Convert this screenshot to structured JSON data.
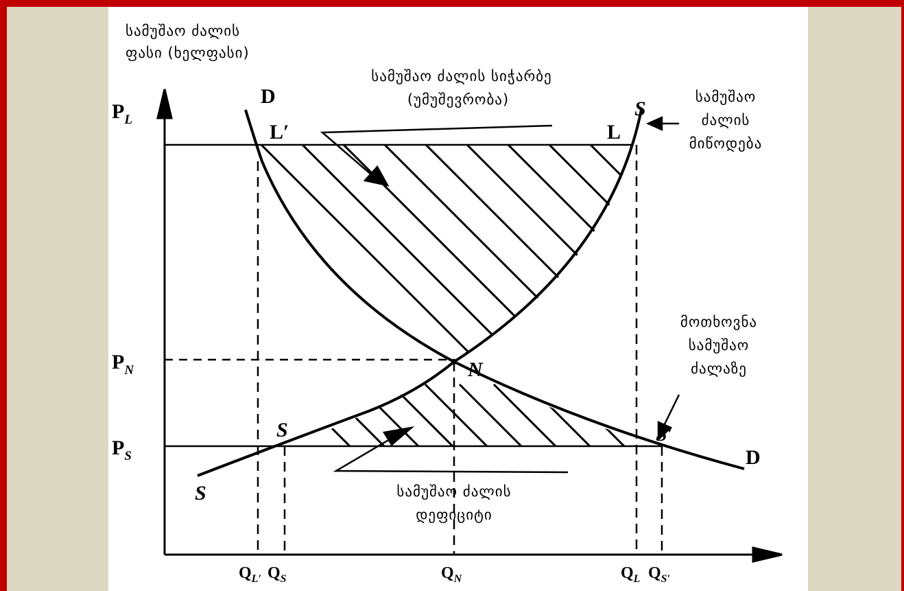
{
  "y_axis_title": [
    "სამუშაო ძალის",
    "ფასი (ხელფასი)"
  ],
  "surplus_label": [
    "სამუშაო ძალის სიჭარბე",
    "(უმუშევრობა)"
  ],
  "supply_label": [
    "სამუშაო",
    "ძალის",
    "მიწოდება"
  ],
  "demand_label": [
    "მოთხოვნა",
    "სამუშაო",
    "ძალაზე"
  ],
  "deficit_label": [
    "სამუშაო ძალის",
    "დეფიციტი"
  ],
  "price_levels": {
    "pl": {
      "base": "P",
      "sub": "L"
    },
    "pn": {
      "base": "P",
      "sub": "N"
    },
    "ps": {
      "base": "P",
      "sub": "S"
    }
  },
  "quantity_ticks": {
    "ql_prime": {
      "base": "Q",
      "sub": "L′"
    },
    "qs": {
      "base": "Q",
      "sub": "S"
    },
    "qn": {
      "base": "Q",
      "sub": "N"
    },
    "ql": {
      "base": "Q",
      "sub": "L"
    },
    "qs_prime": {
      "base": "Q",
      "sub": "S′"
    }
  },
  "points": {
    "d_top": "D",
    "s_top": "S",
    "l_prime": "L′",
    "l": "L",
    "n": "N",
    "s_low": "S",
    "s_prime": "S′",
    "d_bottom": "D",
    "s_bottom": "S"
  },
  "colors": {
    "frame": "#c00000",
    "background": "#ddd8c2",
    "ink": "#000000"
  }
}
